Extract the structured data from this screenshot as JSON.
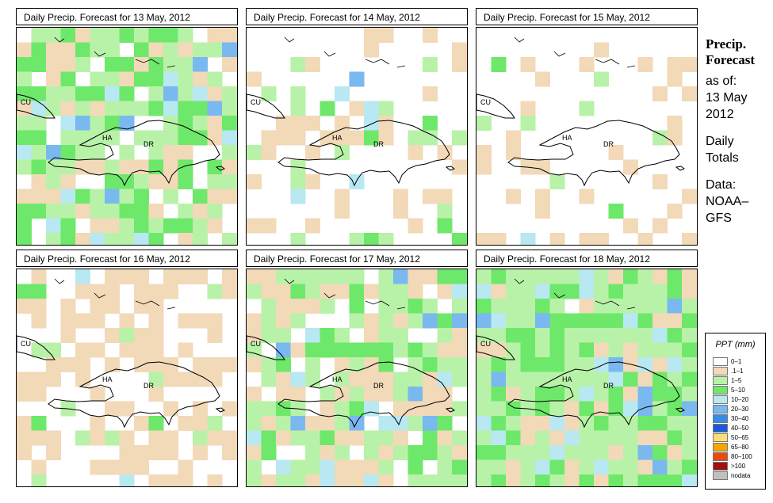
{
  "panels": [
    {
      "title": "Daily Precip. Forecast for  13 May, 2012",
      "cover": 0.85,
      "wet": 0.75,
      "seed": 11
    },
    {
      "title": "Daily Precip. Forecast for  14 May, 2012",
      "cover": 0.3,
      "wet": 0.45,
      "seed": 23
    },
    {
      "title": "Daily Precip. Forecast for  15 May, 2012",
      "cover": 0.22,
      "wet": 0.2,
      "seed": 37
    },
    {
      "title": "Daily Precip. Forecast for  16 May, 2012",
      "cover": 0.55,
      "wet": 0.2,
      "seed": 41
    },
    {
      "title": "Daily Precip. Forecast for  17 May, 2012",
      "cover": 0.85,
      "wet": 0.6,
      "seed": 53
    },
    {
      "title": "Daily Precip. Forecast for  18 May, 2012",
      "cover": 0.95,
      "wet": 0.85,
      "seed": 67
    }
  ],
  "map_labels": {
    "cu": "CU",
    "ha": "HA",
    "dr": "DR"
  },
  "side": {
    "title_line1": "Precip.",
    "title_line2": "Forecast",
    "asof": "as of:",
    "date_line1": "13 May",
    "date_line2": "2012",
    "daily": "Daily",
    "totals": "Totals",
    "data_label": "Data:",
    "source1": "NOAA–",
    "source2": "GFS"
  },
  "legend": {
    "title": "PPT (mm)",
    "items": [
      {
        "label": "0–1",
        "color": "#ffffff"
      },
      {
        "label": ".1–1",
        "color": "#f2d9b8"
      },
      {
        "label": "1–5",
        "color": "#b8f2a8"
      },
      {
        "label": "5–10",
        "color": "#6ee86a"
      },
      {
        "label": "10–20",
        "color": "#b8e8f2"
      },
      {
        "label": "20–30",
        "color": "#7ab8f0"
      },
      {
        "label": "30–40",
        "color": "#3a8ae8"
      },
      {
        "label": "40–50",
        "color": "#1a5ad8"
      },
      {
        "label": "50–65",
        "color": "#f5e07a"
      },
      {
        "label": "65–80",
        "color": "#f5a600"
      },
      {
        "label": "80–100",
        "color": "#e84a10"
      },
      {
        "label": ">100",
        "color": "#a01010"
      },
      {
        "label": "nodata",
        "color": "#c0c0c0"
      }
    ]
  }
}
